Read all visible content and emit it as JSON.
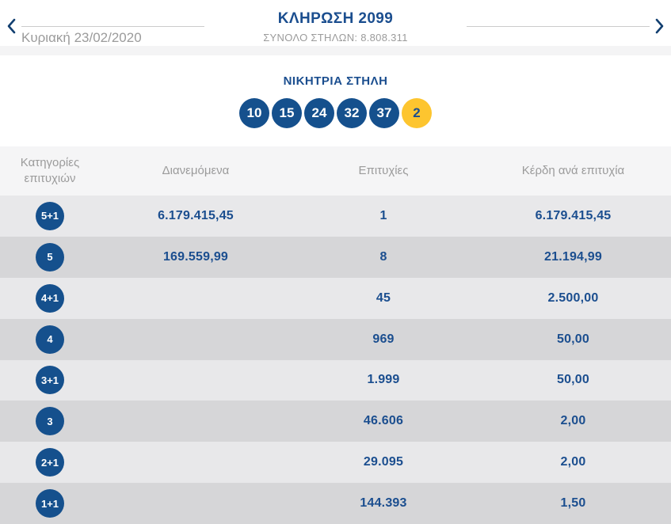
{
  "colors": {
    "accent_blue": "#1b4e8f",
    "badge_blue": "#15508d",
    "joker_yellow": "#fdc52f",
    "row_light": "#e8e8ea",
    "row_dark": "#d6d6d8",
    "table_header_bg": "#f5f5f6",
    "muted_gray": "#9b9b9b"
  },
  "header": {
    "title": "ΚΛΗΡΩΣΗ 2099",
    "total_columns": "ΣΥΝΟΛΟ ΣΤΗΛΩΝ: 8.808.311",
    "date": "Κυριακή 23/02/2020",
    "prev_arrow": "chevron-left",
    "next_arrow": "chevron-right"
  },
  "winning_column": {
    "title": "ΝΙΚΗΤΡΙΑ ΣΤΗΛΗ",
    "numbers": [
      "10",
      "15",
      "24",
      "32",
      "37"
    ],
    "joker": "2"
  },
  "results_table": {
    "headers": {
      "category": "Κατηγορίες επιτυχιών",
      "distributed": "Διανεμόμενα",
      "winners": "Επιτυχίες",
      "prize": "Κέρδη ανά επιτυχία"
    },
    "rows": [
      {
        "category": "5+1",
        "distributed": "6.179.415,45",
        "winners": "1",
        "prize": "6.179.415,45"
      },
      {
        "category": "5",
        "distributed": "169.559,99",
        "winners": "8",
        "prize": "21.194,99"
      },
      {
        "category": "4+1",
        "distributed": "",
        "winners": "45",
        "prize": "2.500,00"
      },
      {
        "category": "4",
        "distributed": "",
        "winners": "969",
        "prize": "50,00"
      },
      {
        "category": "3+1",
        "distributed": "",
        "winners": "1.999",
        "prize": "50,00"
      },
      {
        "category": "3",
        "distributed": "",
        "winners": "46.606",
        "prize": "2,00"
      },
      {
        "category": "2+1",
        "distributed": "",
        "winners": "29.095",
        "prize": "2,00"
      },
      {
        "category": "1+1",
        "distributed": "",
        "winners": "144.393",
        "prize": "1,50"
      }
    ]
  }
}
